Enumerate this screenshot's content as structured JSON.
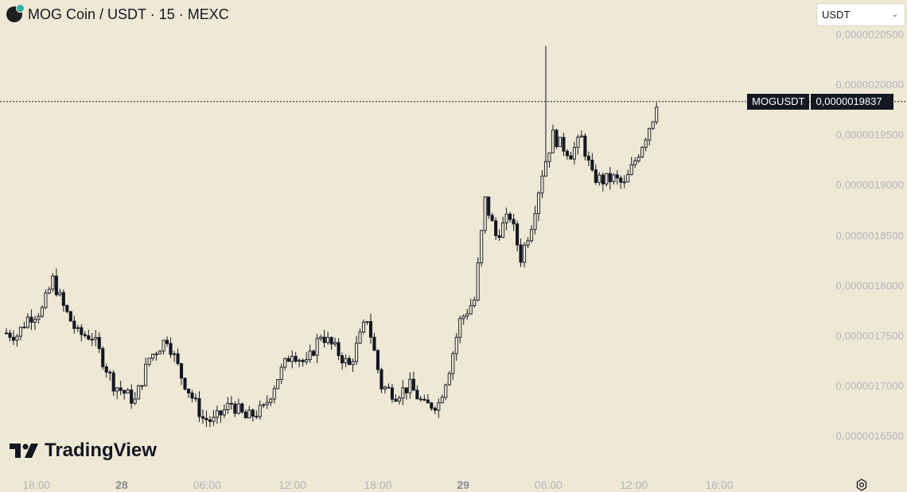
{
  "header": {
    "pair": "MOG Coin / USDT",
    "interval": "15",
    "exchange": "MEXC",
    "separator": " · "
  },
  "currency_select": {
    "value": "USDT",
    "icon": "chevron-down-icon"
  },
  "price_tag": {
    "symbol": "MOGUSDT",
    "value": "0,0000019837"
  },
  "logo": {
    "text": "TradingView"
  },
  "colors": {
    "background": "#EEE8D5",
    "candle": "#131722",
    "axis_text": "#b2b5be"
  },
  "chart_data": {
    "type": "candlestick",
    "symbol": "MOGUSDT",
    "interval_minutes": 15,
    "last_price": 1.9837e-06,
    "ylim": [
      1.64e-06,
      2.065e-06
    ],
    "y_ticks": [
      {
        "value": 1.65e-06,
        "label": "0,0000016500"
      },
      {
        "value": 1.7e-06,
        "label": "0,0000017000"
      },
      {
        "value": 1.75e-06,
        "label": "0,0000017500"
      },
      {
        "value": 1.8e-06,
        "label": "0,0000018000"
      },
      {
        "value": 1.85e-06,
        "label": "0,0000018500"
      },
      {
        "value": 1.9e-06,
        "label": "0,0000019000"
      },
      {
        "value": 1.95e-06,
        "label": "0,0000019500"
      },
      {
        "value": 2e-06,
        "label": "0,0000020000"
      },
      {
        "value": 2.05e-06,
        "label": "0,0000020500"
      }
    ],
    "x_ticks": [
      {
        "label": "18:00",
        "bar": 8,
        "bold": false
      },
      {
        "label": "28",
        "bar": 32,
        "bold": true
      },
      {
        "label": "06:00",
        "bar": 56,
        "bold": false
      },
      {
        "label": "12:00",
        "bar": 80,
        "bold": false
      },
      {
        "label": "18:00",
        "bar": 104,
        "bold": false
      },
      {
        "label": "29",
        "bar": 128,
        "bold": true
      },
      {
        "label": "06:00",
        "bar": 152,
        "bold": false
      },
      {
        "label": "12:00",
        "bar": 176,
        "bold": false
      },
      {
        "label": "18:00",
        "bar": 200,
        "bold": false
      }
    ],
    "close_path": [
      [
        0,
        1.753
      ],
      [
        3,
        1.751
      ],
      [
        6,
        1.768
      ],
      [
        10,
        1.776
      ],
      [
        13,
        1.806
      ],
      [
        16,
        1.779
      ],
      [
        20,
        1.752
      ],
      [
        24,
        1.75
      ],
      [
        30,
        1.702
      ],
      [
        36,
        1.685
      ],
      [
        40,
        1.728
      ],
      [
        45,
        1.748
      ],
      [
        49,
        1.71
      ],
      [
        55,
        1.668
      ],
      [
        58,
        1.665
      ],
      [
        63,
        1.683
      ],
      [
        67,
        1.668
      ],
      [
        72,
        1.677
      ],
      [
        76,
        1.709
      ],
      [
        80,
        1.735
      ],
      [
        84,
        1.721
      ],
      [
        88,
        1.752
      ],
      [
        92,
        1.737
      ],
      [
        96,
        1.72
      ],
      [
        101,
        1.768
      ],
      [
        105,
        1.7
      ],
      [
        109,
        1.692
      ],
      [
        113,
        1.7
      ],
      [
        117,
        1.68
      ],
      [
        121,
        1.683
      ],
      [
        124,
        1.718
      ],
      [
        127,
        1.765
      ],
      [
        131,
        1.786
      ],
      [
        134,
        1.885
      ],
      [
        137,
        1.85
      ],
      [
        141,
        1.87
      ],
      [
        144,
        1.828
      ],
      [
        147,
        1.862
      ],
      [
        150,
        1.913
      ],
      [
        153,
        1.95
      ],
      [
        155,
        1.941
      ],
      [
        158,
        1.932
      ],
      [
        161,
        1.947
      ],
      [
        164,
        1.909
      ],
      [
        167,
        1.905
      ],
      [
        170,
        1.907
      ],
      [
        173,
        1.9
      ],
      [
        176,
        1.925
      ],
      [
        179,
        1.95
      ],
      [
        181,
        1.968
      ],
      [
        182,
        1.9837
      ]
    ],
    "special_wicks": [
      {
        "bar": 151,
        "high": 2.039
      }
    ],
    "value_scale_note": "close_path values are in units of 1e-6 USDT"
  }
}
